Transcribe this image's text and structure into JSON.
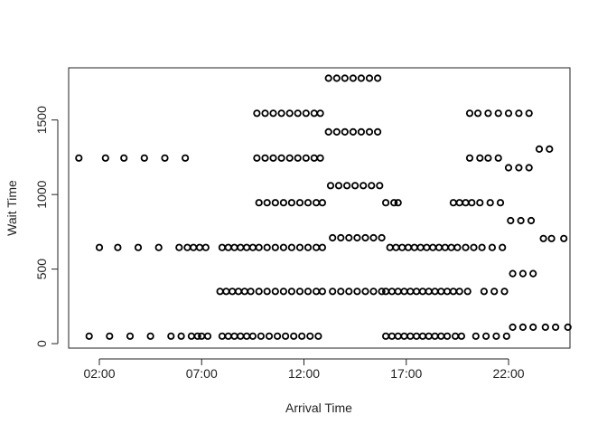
{
  "chart_data": {
    "type": "scatter",
    "xlabel": "Arrival Time",
    "ylabel": "Wait Time",
    "x_unit": "hours",
    "xlim": [
      0.5,
      25
    ],
    "ylim": [
      -30,
      1850
    ],
    "x_ticks": [
      {
        "value": 2,
        "label": "02:00"
      },
      {
        "value": 7,
        "label": "07:00"
      },
      {
        "value": 12,
        "label": "12:00"
      },
      {
        "value": 17,
        "label": "17:00"
      },
      {
        "value": 22,
        "label": "22:00"
      }
    ],
    "y_ticks": [
      {
        "value": 0,
        "label": "0"
      },
      {
        "value": 500,
        "label": "500"
      },
      {
        "value": 1000,
        "label": "1000"
      },
      {
        "value": 1500,
        "label": "1500"
      }
    ],
    "marker": "open-circle",
    "grid": false,
    "legend": "none",
    "points": [
      [
        1.0,
        1245
      ],
      [
        1.5,
        50
      ],
      [
        2.0,
        645
      ],
      [
        2.3,
        1245
      ],
      [
        2.5,
        50
      ],
      [
        2.9,
        645
      ],
      [
        3.2,
        1245
      ],
      [
        3.5,
        50
      ],
      [
        3.9,
        645
      ],
      [
        4.2,
        1245
      ],
      [
        4.5,
        50
      ],
      [
        4.9,
        645
      ],
      [
        5.2,
        1245
      ],
      [
        5.5,
        50
      ],
      [
        5.9,
        645
      ],
      [
        6.2,
        1245
      ],
      [
        6.0,
        50
      ],
      [
        6.3,
        645
      ],
      [
        6.5,
        50
      ],
      [
        6.6,
        645
      ],
      [
        6.8,
        50
      ],
      [
        6.9,
        645
      ],
      [
        7.0,
        50
      ],
      [
        7.2,
        645
      ],
      [
        7.3,
        50
      ],
      [
        7.9,
        350
      ],
      [
        8.0,
        50
      ],
      [
        8.0,
        645
      ],
      [
        8.2,
        350
      ],
      [
        8.3,
        50
      ],
      [
        8.3,
        645
      ],
      [
        8.5,
        350
      ],
      [
        8.6,
        50
      ],
      [
        8.6,
        645
      ],
      [
        8.8,
        350
      ],
      [
        8.9,
        50
      ],
      [
        8.9,
        645
      ],
      [
        9.1,
        350
      ],
      [
        9.2,
        50
      ],
      [
        9.2,
        645
      ],
      [
        9.4,
        350
      ],
      [
        9.5,
        50
      ],
      [
        9.5,
        645
      ],
      [
        9.7,
        1545
      ],
      [
        9.7,
        1245
      ],
      [
        9.8,
        945
      ],
      [
        9.8,
        645
      ],
      [
        9.8,
        350
      ],
      [
        9.9,
        50
      ],
      [
        10.1,
        1545
      ],
      [
        10.1,
        1245
      ],
      [
        10.2,
        945
      ],
      [
        10.2,
        645
      ],
      [
        10.2,
        350
      ],
      [
        10.3,
        50
      ],
      [
        10.5,
        1545
      ],
      [
        10.5,
        1245
      ],
      [
        10.6,
        945
      ],
      [
        10.6,
        645
      ],
      [
        10.6,
        350
      ],
      [
        10.7,
        50
      ],
      [
        10.9,
        1545
      ],
      [
        10.9,
        1245
      ],
      [
        11.0,
        945
      ],
      [
        11.0,
        645
      ],
      [
        11.0,
        350
      ],
      [
        11.1,
        50
      ],
      [
        11.3,
        1545
      ],
      [
        11.3,
        1245
      ],
      [
        11.4,
        945
      ],
      [
        11.4,
        645
      ],
      [
        11.4,
        350
      ],
      [
        11.5,
        50
      ],
      [
        11.7,
        1545
      ],
      [
        11.7,
        1245
      ],
      [
        11.8,
        945
      ],
      [
        11.8,
        645
      ],
      [
        11.8,
        350
      ],
      [
        11.9,
        50
      ],
      [
        12.1,
        1545
      ],
      [
        12.1,
        1245
      ],
      [
        12.2,
        945
      ],
      [
        12.2,
        645
      ],
      [
        12.2,
        350
      ],
      [
        12.3,
        50
      ],
      [
        12.5,
        1545
      ],
      [
        12.5,
        1245
      ],
      [
        12.6,
        945
      ],
      [
        12.6,
        645
      ],
      [
        12.6,
        350
      ],
      [
        12.7,
        50
      ],
      [
        12.8,
        1545
      ],
      [
        12.8,
        1245
      ],
      [
        12.9,
        945
      ],
      [
        12.9,
        645
      ],
      [
        12.9,
        350
      ],
      [
        13.2,
        1780
      ],
      [
        13.2,
        1420
      ],
      [
        13.3,
        1060
      ],
      [
        13.4,
        710
      ],
      [
        13.4,
        350
      ],
      [
        13.6,
        1780
      ],
      [
        13.6,
        1420
      ],
      [
        13.7,
        1060
      ],
      [
        13.8,
        710
      ],
      [
        13.8,
        350
      ],
      [
        14.0,
        1780
      ],
      [
        14.0,
        1420
      ],
      [
        14.1,
        1060
      ],
      [
        14.2,
        710
      ],
      [
        14.2,
        350
      ],
      [
        14.4,
        1780
      ],
      [
        14.4,
        1420
      ],
      [
        14.5,
        1060
      ],
      [
        14.6,
        710
      ],
      [
        14.6,
        350
      ],
      [
        14.8,
        1780
      ],
      [
        14.8,
        1420
      ],
      [
        14.9,
        1060
      ],
      [
        15.0,
        710
      ],
      [
        15.0,
        350
      ],
      [
        15.2,
        1780
      ],
      [
        15.2,
        1420
      ],
      [
        15.3,
        1060
      ],
      [
        15.4,
        710
      ],
      [
        15.4,
        350
      ],
      [
        15.6,
        1780
      ],
      [
        15.6,
        1420
      ],
      [
        15.7,
        1060
      ],
      [
        15.8,
        710
      ],
      [
        15.8,
        350
      ],
      [
        16.0,
        945
      ],
      [
        16.0,
        50
      ],
      [
        16.0,
        350
      ],
      [
        16.2,
        645
      ],
      [
        16.3,
        350
      ],
      [
        16.3,
        50
      ],
      [
        16.4,
        945
      ],
      [
        16.5,
        645
      ],
      [
        16.6,
        350
      ],
      [
        16.6,
        50
      ],
      [
        16.6,
        945
      ],
      [
        16.8,
        645
      ],
      [
        16.9,
        350
      ],
      [
        16.9,
        50
      ],
      [
        17.1,
        645
      ],
      [
        17.2,
        350
      ],
      [
        17.2,
        50
      ],
      [
        17.4,
        645
      ],
      [
        17.5,
        350
      ],
      [
        17.5,
        50
      ],
      [
        17.7,
        645
      ],
      [
        17.8,
        350
      ],
      [
        17.8,
        50
      ],
      [
        18.0,
        645
      ],
      [
        18.1,
        350
      ],
      [
        18.1,
        50
      ],
      [
        18.3,
        645
      ],
      [
        18.4,
        350
      ],
      [
        18.4,
        50
      ],
      [
        18.6,
        645
      ],
      [
        18.7,
        350
      ],
      [
        18.7,
        50
      ],
      [
        18.9,
        645
      ],
      [
        19.0,
        350
      ],
      [
        19.0,
        50
      ],
      [
        19.2,
        645
      ],
      [
        19.3,
        945
      ],
      [
        19.3,
        350
      ],
      [
        19.4,
        50
      ],
      [
        19.5,
        645
      ],
      [
        19.6,
        945
      ],
      [
        19.6,
        350
      ],
      [
        19.7,
        50
      ],
      [
        19.9,
        645
      ],
      [
        19.9,
        945
      ],
      [
        20.0,
        350
      ],
      [
        20.1,
        1545
      ],
      [
        20.1,
        1245
      ],
      [
        20.2,
        945
      ],
      [
        20.3,
        645
      ],
      [
        20.4,
        50
      ],
      [
        20.5,
        1545
      ],
      [
        20.6,
        1245
      ],
      [
        20.6,
        945
      ],
      [
        20.7,
        645
      ],
      [
        20.8,
        350
      ],
      [
        20.9,
        50
      ],
      [
        21.0,
        1545
      ],
      [
        21.0,
        1245
      ],
      [
        21.1,
        945
      ],
      [
        21.2,
        645
      ],
      [
        21.3,
        350
      ],
      [
        21.4,
        50
      ],
      [
        21.5,
        1545
      ],
      [
        21.5,
        1245
      ],
      [
        21.6,
        945
      ],
      [
        21.7,
        645
      ],
      [
        21.8,
        350
      ],
      [
        21.9,
        50
      ],
      [
        22.0,
        1545
      ],
      [
        22.0,
        1180
      ],
      [
        22.1,
        825
      ],
      [
        22.2,
        470
      ],
      [
        22.2,
        110
      ],
      [
        22.5,
        1545
      ],
      [
        22.5,
        1180
      ],
      [
        22.6,
        825
      ],
      [
        22.7,
        470
      ],
      [
        22.7,
        110
      ],
      [
        23.0,
        1545
      ],
      [
        23.0,
        1180
      ],
      [
        23.1,
        825
      ],
      [
        23.2,
        470
      ],
      [
        23.2,
        110
      ],
      [
        23.5,
        1305
      ],
      [
        23.7,
        705
      ],
      [
        23.8,
        110
      ],
      [
        24.0,
        1305
      ],
      [
        24.1,
        705
      ],
      [
        24.3,
        110
      ],
      [
        24.7,
        705
      ],
      [
        24.9,
        110
      ]
    ]
  }
}
